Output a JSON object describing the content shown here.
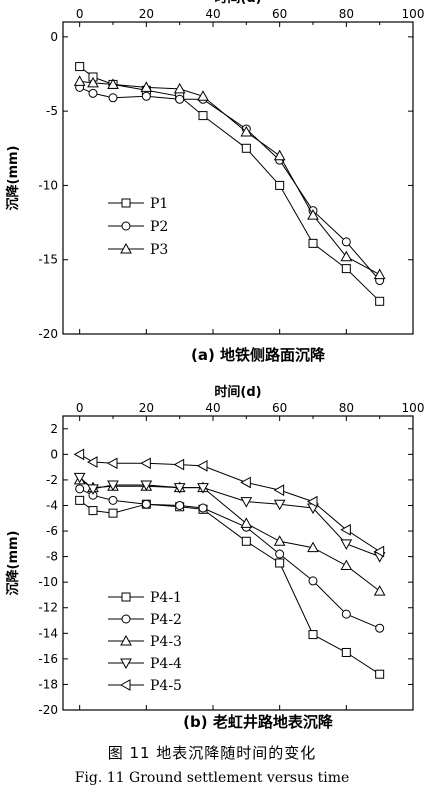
{
  "figure": {
    "caption_cn": "图 11    地表沉降随时间的变化",
    "caption_en": "Fig. 11    Ground settlement versus time"
  },
  "chart_data": [
    {
      "type": "line",
      "title": "(a) 地铁侧路面沉降",
      "xlabel": "时间(d)",
      "ylabel": "沉降(mm)",
      "xlim": [
        -5,
        100
      ],
      "ylim": [
        -20,
        1
      ],
      "xticks": [
        0,
        20,
        40,
        60,
        80,
        100
      ],
      "yticks": [
        0,
        -5,
        -10,
        -15,
        -20
      ],
      "legend_position": "left-middle",
      "series": [
        {
          "name": "P1",
          "marker": "square",
          "x": [
            0,
            4,
            10,
            20,
            30,
            37,
            50,
            60,
            70,
            80,
            90
          ],
          "y": [
            -2.0,
            -2.7,
            -3.2,
            -3.6,
            -4.0,
            -5.3,
            -7.5,
            -10.0,
            -13.9,
            -15.6,
            -17.8
          ]
        },
        {
          "name": "P2",
          "marker": "circle",
          "x": [
            0,
            4,
            10,
            20,
            30,
            37,
            50,
            60,
            70,
            80,
            90
          ],
          "y": [
            -3.4,
            -3.8,
            -4.1,
            -4.0,
            -4.2,
            -4.2,
            -6.2,
            -8.3,
            -11.7,
            -13.8,
            -16.4
          ]
        },
        {
          "name": "P3",
          "marker": "triangle-up",
          "x": [
            0,
            4,
            10,
            20,
            30,
            37,
            50,
            60,
            70,
            80,
            90
          ],
          "y": [
            -3.0,
            -3.1,
            -3.2,
            -3.4,
            -3.5,
            -4.0,
            -6.4,
            -8.0,
            -12.0,
            -14.8,
            -16.0
          ]
        }
      ]
    },
    {
      "type": "line",
      "title": "(b) 老虹井路地表沉降",
      "xlabel": "时间(d)",
      "ylabel": "沉降(mm)",
      "xlim": [
        -5,
        100
      ],
      "ylim": [
        -20,
        3
      ],
      "xticks": [
        0,
        20,
        40,
        60,
        80,
        100
      ],
      "yticks": [
        2,
        0,
        -2,
        -4,
        -6,
        -8,
        -10,
        -12,
        -14,
        -16,
        -18,
        -20
      ],
      "legend_position": "bottom-left",
      "series": [
        {
          "name": "P4-1",
          "marker": "square",
          "x": [
            0,
            4,
            10,
            20,
            30,
            37,
            50,
            60,
            70,
            80,
            90
          ],
          "y": [
            -3.6,
            -4.4,
            -4.6,
            -3.9,
            -4.1,
            -4.3,
            -6.8,
            -8.5,
            -14.1,
            -15.5,
            -17.2
          ]
        },
        {
          "name": "P4-2",
          "marker": "circle",
          "x": [
            0,
            4,
            10,
            20,
            30,
            37,
            50,
            60,
            70,
            80,
            90
          ],
          "y": [
            -2.7,
            -3.2,
            -3.6,
            -3.9,
            -4.0,
            -4.2,
            -5.7,
            -7.8,
            -9.9,
            -12.5,
            -13.6
          ]
        },
        {
          "name": "P4-3",
          "marker": "triangle-up",
          "x": [
            0,
            4,
            10,
            20,
            30,
            37,
            50,
            60,
            70,
            80,
            90
          ],
          "y": [
            -2.0,
            -2.6,
            -2.5,
            -2.5,
            -2.6,
            -2.6,
            -5.4,
            -6.8,
            -7.3,
            -8.7,
            -10.7
          ]
        },
        {
          "name": "P4-4",
          "marker": "triangle-down",
          "x": [
            0,
            4,
            10,
            20,
            30,
            37,
            50,
            60,
            70,
            80,
            90
          ],
          "y": [
            -1.8,
            -2.7,
            -2.4,
            -2.4,
            -2.6,
            -2.6,
            -3.7,
            -3.9,
            -4.2,
            -7.0,
            -8.0
          ]
        },
        {
          "name": "P4-5",
          "marker": "triangle-left",
          "x": [
            0,
            4,
            10,
            20,
            30,
            37,
            50,
            60,
            70,
            80,
            90
          ],
          "y": [
            0.0,
            -0.6,
            -0.7,
            -0.7,
            -0.8,
            -0.9,
            -2.2,
            -2.8,
            -3.7,
            -5.9,
            -7.6
          ]
        }
      ]
    }
  ]
}
